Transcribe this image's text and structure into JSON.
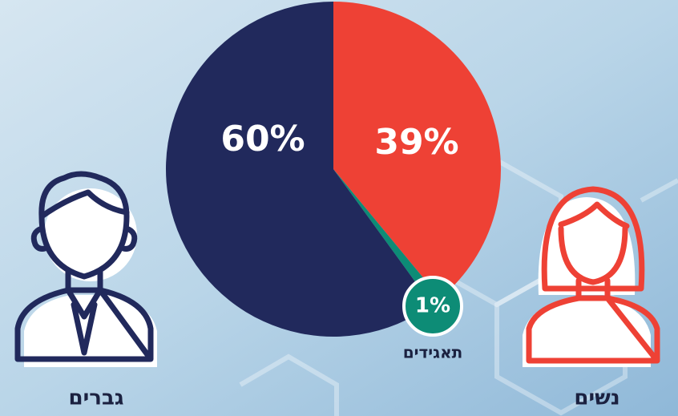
{
  "chart_data": {
    "type": "pie",
    "categories": [
      "נשים",
      "תאגידים",
      "גברים"
    ],
    "values": [
      39,
      1,
      60
    ],
    "value_labels": [
      "39%",
      "1%",
      "60%"
    ],
    "colors": [
      "#ee4135",
      "#0d8c76",
      "#21295c"
    ]
  }
}
